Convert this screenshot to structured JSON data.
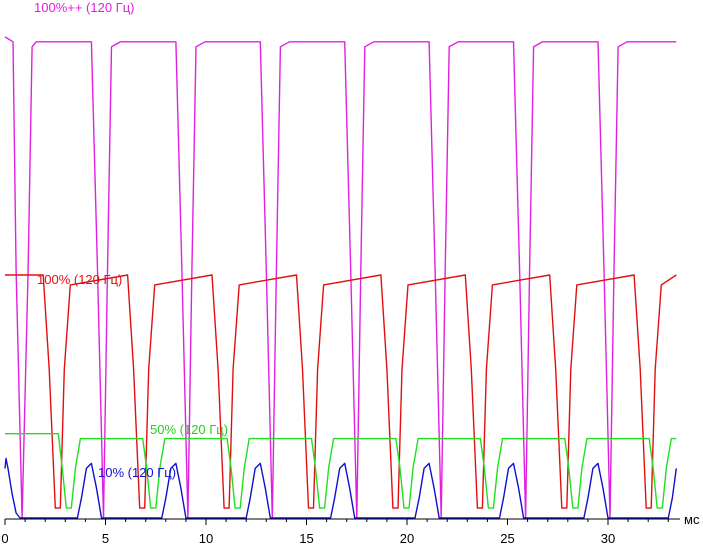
{
  "chart_data": {
    "type": "line",
    "xlabel": "мс",
    "xlim": [
      0,
      33.4
    ],
    "ylim": [
      0,
      1
    ],
    "x_ticks": [
      0,
      5,
      10,
      15,
      20,
      25,
      30
    ],
    "period_ms": 4.2,
    "grid": false,
    "series": [
      {
        "name": "100%++ (120 Гц)",
        "color": "#e020e0",
        "x": [
          0,
          0.4,
          0.55,
          0.85,
          1.15,
          1.35,
          1.55,
          4.3,
          4.6,
          4.9,
          5.1,
          5.3,
          5.75,
          8.5,
          8.8,
          9.1,
          9.3,
          9.5,
          9.95,
          12.7,
          13.0,
          13.3,
          13.5,
          13.7,
          14.15,
          16.9,
          17.2,
          17.5,
          17.7,
          17.9,
          18.35,
          21.1,
          21.4,
          21.7,
          21.9,
          22.1,
          22.55,
          25.3,
          25.6,
          25.9,
          26.1,
          26.3,
          26.75,
          29.5,
          29.8,
          30.1,
          30.3,
          30.5,
          30.95,
          33.4
        ],
        "y": [
          0.97,
          0.96,
          0.5,
          0.0,
          0.5,
          0.95,
          0.96,
          0.96,
          0.5,
          0.0,
          0.5,
          0.95,
          0.96,
          0.96,
          0.5,
          0.0,
          0.5,
          0.95,
          0.96,
          0.96,
          0.5,
          0.0,
          0.5,
          0.95,
          0.96,
          0.96,
          0.5,
          0.0,
          0.5,
          0.95,
          0.96,
          0.96,
          0.5,
          0.0,
          0.5,
          0.95,
          0.96,
          0.96,
          0.5,
          0.0,
          0.5,
          0.95,
          0.96,
          0.96,
          0.5,
          0.0,
          0.5,
          0.95,
          0.96,
          0.96
        ]
      },
      {
        "name": "100% (120 Гц)",
        "color": "#e01010",
        "x": [
          0,
          1.9,
          2.2,
          2.5,
          2.75,
          2.95,
          3.25,
          6.1,
          6.4,
          6.7,
          6.95,
          7.15,
          7.45,
          10.3,
          10.6,
          10.9,
          11.15,
          11.35,
          11.65,
          14.5,
          14.8,
          15.1,
          15.35,
          15.55,
          15.85,
          18.7,
          19.0,
          19.3,
          19.55,
          19.75,
          20.05,
          22.9,
          23.2,
          23.5,
          23.75,
          23.95,
          24.25,
          27.1,
          27.4,
          27.7,
          27.95,
          28.15,
          28.45,
          31.3,
          31.6,
          31.9,
          32.15,
          32.35,
          32.65,
          33.4
        ],
        "y": [
          0.49,
          0.49,
          0.3,
          0.02,
          0.02,
          0.3,
          0.47,
          0.49,
          0.3,
          0.02,
          0.02,
          0.3,
          0.47,
          0.49,
          0.3,
          0.02,
          0.02,
          0.3,
          0.47,
          0.49,
          0.3,
          0.02,
          0.02,
          0.3,
          0.47,
          0.49,
          0.3,
          0.02,
          0.02,
          0.3,
          0.47,
          0.49,
          0.3,
          0.02,
          0.02,
          0.3,
          0.47,
          0.49,
          0.3,
          0.02,
          0.02,
          0.3,
          0.47,
          0.49,
          0.3,
          0.02,
          0.02,
          0.3,
          0.47,
          0.49
        ]
      },
      {
        "name": "50% (120 Гц)",
        "color": "#20e020",
        "x": [
          0,
          2.65,
          2.85,
          3.05,
          3.3,
          3.5,
          3.75,
          6.85,
          7.05,
          7.25,
          7.5,
          7.7,
          7.95,
          11.05,
          11.25,
          11.45,
          11.7,
          11.9,
          12.15,
          15.25,
          15.45,
          15.65,
          15.9,
          16.1,
          16.35,
          19.45,
          19.65,
          19.85,
          20.1,
          20.3,
          20.55,
          23.65,
          23.85,
          24.05,
          24.3,
          24.5,
          24.75,
          27.85,
          28.05,
          28.25,
          28.5,
          28.7,
          28.95,
          32.05,
          32.25,
          32.45,
          32.7,
          32.9,
          33.15,
          33.4
        ],
        "y": [
          0.17,
          0.17,
          0.1,
          0.02,
          0.02,
          0.1,
          0.16,
          0.16,
          0.1,
          0.02,
          0.02,
          0.1,
          0.16,
          0.16,
          0.1,
          0.02,
          0.02,
          0.1,
          0.16,
          0.16,
          0.1,
          0.02,
          0.02,
          0.1,
          0.16,
          0.16,
          0.1,
          0.02,
          0.02,
          0.1,
          0.16,
          0.16,
          0.1,
          0.02,
          0.02,
          0.1,
          0.16,
          0.16,
          0.1,
          0.02,
          0.02,
          0.1,
          0.16,
          0.16,
          0.1,
          0.02,
          0.02,
          0.1,
          0.16,
          0.16
        ]
      },
      {
        "name": "10% (120 Гц)",
        "color": "#1010d0",
        "x": [
          0,
          0.05,
          0.15,
          0.35,
          0.55,
          0.75,
          1.0,
          3.6,
          3.8,
          4.05,
          4.3,
          4.55,
          4.8,
          7.8,
          8.0,
          8.25,
          8.5,
          8.75,
          9.0,
          12.0,
          12.2,
          12.45,
          12.7,
          12.95,
          13.2,
          16.2,
          16.4,
          16.65,
          16.9,
          17.15,
          17.4,
          20.4,
          20.6,
          20.85,
          21.1,
          21.35,
          21.6,
          24.6,
          24.8,
          25.05,
          25.3,
          25.55,
          25.8,
          28.8,
          29.0,
          29.25,
          29.5,
          29.75,
          30.0,
          33.0,
          33.2,
          33.4
        ],
        "y": [
          0.1,
          0.12,
          0.1,
          0.05,
          0.01,
          0.0,
          0.0,
          0.0,
          0.04,
          0.1,
          0.11,
          0.06,
          0.0,
          0.0,
          0.04,
          0.1,
          0.11,
          0.06,
          0.0,
          0.0,
          0.04,
          0.1,
          0.11,
          0.06,
          0.0,
          0.0,
          0.04,
          0.1,
          0.11,
          0.06,
          0.0,
          0.0,
          0.04,
          0.1,
          0.11,
          0.06,
          0.0,
          0.0,
          0.04,
          0.1,
          0.11,
          0.06,
          0.0,
          0.0,
          0.04,
          0.1,
          0.11,
          0.06,
          0.0,
          0.0,
          0.04,
          0.1
        ]
      }
    ]
  }
}
